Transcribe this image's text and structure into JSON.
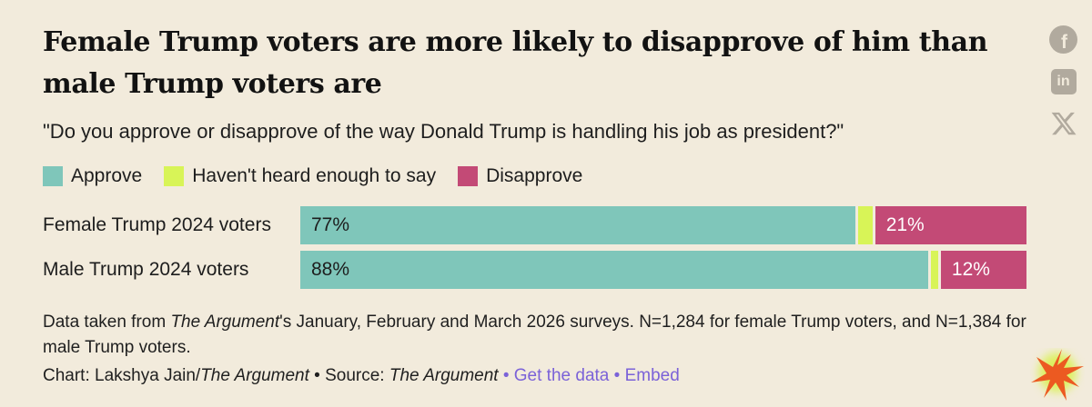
{
  "header": {
    "title": "Female Trump voters are more likely to disapprove of him than male Trump voters are",
    "question": "\"Do you approve or disapprove of the way Donald Trump is handling his job as president?\""
  },
  "chart_data": {
    "type": "bar",
    "orientation": "horizontal",
    "stacked": true,
    "title": "Female Trump voters are more likely to disapprove of him than male Trump voters are",
    "subtitle": "\"Do you approve or disapprove of the way Donald Trump is handling his job as president?\"",
    "categories": [
      "Female Trump 2024 voters",
      "Male Trump 2024 voters"
    ],
    "series": [
      {
        "key": "approve",
        "name": "Approve",
        "color": "#7fc6ba",
        "values": [
          77,
          88
        ],
        "labels": [
          "77%",
          "88%"
        ],
        "label_color": "#1d1d1d"
      },
      {
        "key": "havent-heard",
        "name": "Haven't heard enough to say",
        "color": "#d8f457",
        "values": [
          2,
          1
        ],
        "labels": null,
        "label_color": null
      },
      {
        "key": "disapprove",
        "name": "Disapprove",
        "color": "#c34a76",
        "values": [
          21,
          12
        ],
        "labels": [
          "21%",
          "12%"
        ],
        "label_color": "#ffffff"
      }
    ],
    "xlim": [
      0,
      100
    ],
    "value_unit": "%",
    "legend_position": "top",
    "grid": false
  },
  "note": {
    "part1": "Data taken from ",
    "source_italic": "The Argument",
    "part2": "'s January, February and March 2026 surveys. N=1,284 for female Trump voters, and N=1,384 for male Trump voters."
  },
  "credit": {
    "chart_prefix": "Chart: Lakshya Jain/",
    "chart_source": "The Argument",
    "sep_dark": " • ",
    "source_prefix": "Source: ",
    "source_name": "The Argument",
    "sep_purple": " • ",
    "get_data": "Get the data",
    "embed": "Embed"
  },
  "icons": {
    "facebook_glyph": "f",
    "linkedin_glyph": "in",
    "x_glyph": "X",
    "logo_name": "the-argument-starburst"
  },
  "colors": {
    "background": "#f2ebdc",
    "approve": "#7fc6ba",
    "havent_heard": "#d8f457",
    "disapprove": "#c34a76",
    "link_purple": "#7b62d8",
    "icon_gray": "#b1aa9e",
    "logo_orange": "#ec5a21",
    "logo_glow": "#ddf060"
  }
}
